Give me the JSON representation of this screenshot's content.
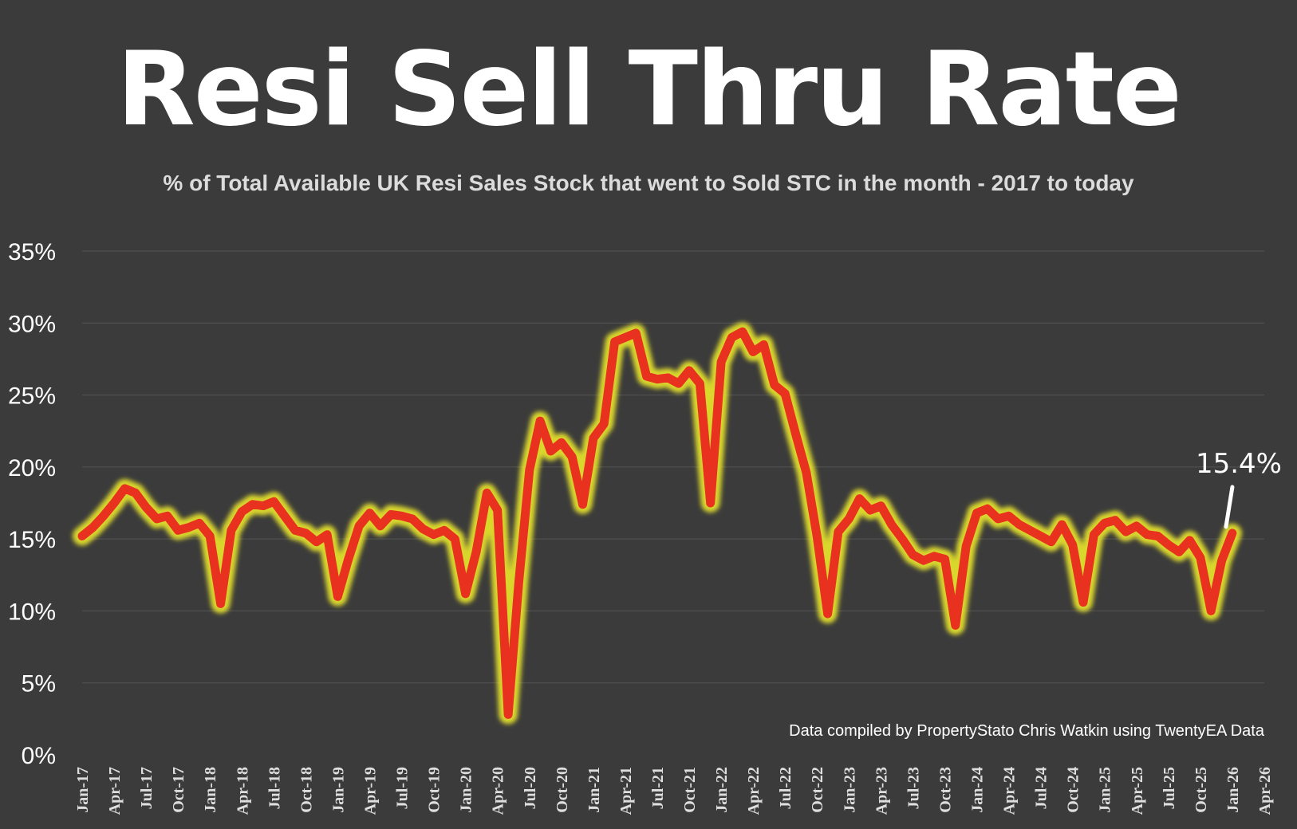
{
  "chart_data": {
    "type": "line",
    "title": "Resi Sell Thru Rate",
    "subtitle": "% of Total Available UK Resi Sales Stock that went to Sold STC in the month - 2017 to today",
    "ylim": [
      0,
      35
    ],
    "yticks": [
      "0%",
      "5%",
      "10%",
      "15%",
      "20%",
      "25%",
      "30%",
      "35%"
    ],
    "xticks": [
      "Jan-17",
      "Apr-17",
      "Jul-17",
      "Oct-17",
      "Jan-18",
      "Apr-18",
      "Jul-18",
      "Oct-18",
      "Jan-19",
      "Apr-19",
      "Jul-19",
      "Oct-19",
      "Jan-20",
      "Apr-20",
      "Jul-20",
      "Oct-20",
      "Jan-21",
      "Apr-21",
      "Jul-21",
      "Oct-21",
      "Jan-22",
      "Apr-22",
      "Jul-22",
      "Oct-22",
      "Jan-23",
      "Apr-23",
      "Jul-23",
      "Oct-23",
      "Jan-24",
      "Apr-24",
      "Jul-24",
      "Oct-24",
      "Jan-25",
      "Apr-25",
      "Jul-25",
      "Oct-25",
      "Jan-26",
      "Apr-26"
    ],
    "grid": true,
    "series": [
      {
        "color": "#e8321f",
        "glow": "#f4f12a",
        "values": [
          15.2,
          15.8,
          16.6,
          17.5,
          18.5,
          18.2,
          17.2,
          16.4,
          16.6,
          15.6,
          15.8,
          16.1,
          15.2,
          10.5,
          15.6,
          16.9,
          17.4,
          17.3,
          17.6,
          16.6,
          15.6,
          15.4,
          14.8,
          15.3,
          11.0,
          13.6,
          15.9,
          16.8,
          15.9,
          16.7,
          16.6,
          16.4,
          15.7,
          15.3,
          15.6,
          15.0,
          11.2,
          14.1,
          18.2,
          17.0,
          2.8,
          12.0,
          19.8,
          23.2,
          21.1,
          21.7,
          20.7,
          17.4,
          22.0,
          23.0,
          28.7,
          29.0,
          29.3,
          26.3,
          26.1,
          26.2,
          25.8,
          26.7,
          25.8,
          17.5,
          27.3,
          29.0,
          29.4,
          28.0,
          28.5,
          25.7,
          25.1,
          22.3,
          19.6,
          15.2,
          9.8,
          15.5,
          16.4,
          17.8,
          17.0,
          17.3,
          16.0,
          15.0,
          13.9,
          13.5,
          13.8,
          13.6,
          9.0,
          14.5,
          16.8,
          17.1,
          16.4,
          16.6,
          16.0,
          15.6,
          15.2,
          14.8,
          16.0,
          14.6,
          10.6,
          15.3,
          16.1,
          16.3,
          15.5,
          15.9,
          15.3,
          15.2,
          14.6,
          14.1,
          14.9,
          13.7,
          10.0,
          13.5,
          15.4
        ]
      }
    ],
    "callout": "15.4%",
    "credit": "Data compiled by PropertyStato Chris Watkin using TwentyEA Data"
  }
}
